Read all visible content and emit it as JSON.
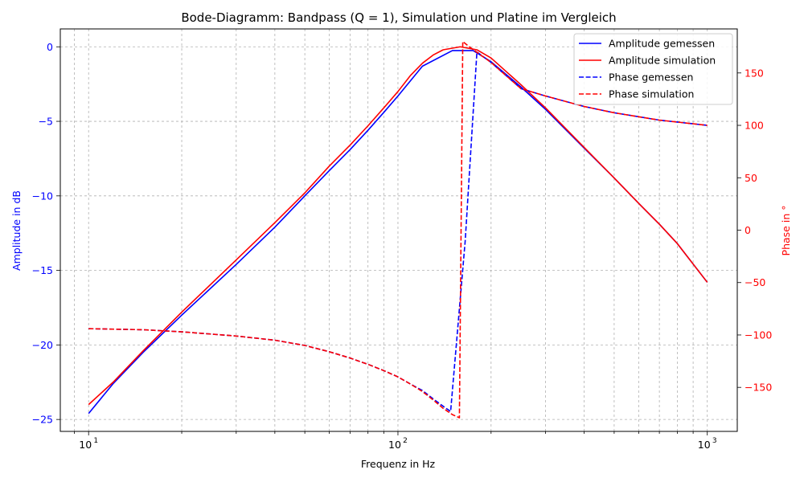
{
  "chart_data": {
    "type": "line",
    "title": "Bode-Diagramm: Bandpass (Q = 1), Simulation und Platine im Vergleich",
    "xlabel": "Frequenz in Hz",
    "ylabel_left": "Amplitude in dB",
    "ylabel_right": "Phase in °",
    "x_scale": "log",
    "xlim": [
      8.1,
      1250
    ],
    "ylim_left": [
      -25.8,
      1.2
    ],
    "ylim_right": [
      -192,
      192
    ],
    "x_ticks": [
      {
        "value": 10,
        "label": "10"
      },
      {
        "value": 100,
        "label": "10"
      },
      {
        "value": 1000,
        "label": "10"
      }
    ],
    "x_tick_exponents": [
      "1",
      "2",
      "3"
    ],
    "y_ticks_left": [
      0,
      -5,
      -10,
      -15,
      -20,
      -25
    ],
    "y_tick_labels_left": [
      "0",
      "−5",
      "−10",
      "−15",
      "−20",
      "−25"
    ],
    "y_ticks_right": [
      150,
      100,
      50,
      0,
      -50,
      -100,
      -150
    ],
    "y_tick_labels_right": [
      "150",
      "100",
      "50",
      "0",
      "−50",
      "−100",
      "−150"
    ],
    "grid": true,
    "legend_position": "top-right",
    "colors": {
      "left_axis": "#0000ff",
      "right_axis": "#ff0000"
    },
    "series": [
      {
        "name": "Amplitude gemessen",
        "axis": "left",
        "color": "#0000ff",
        "style": "solid",
        "points": [
          [
            10,
            -24.6
          ],
          [
            12,
            -22.6
          ],
          [
            15,
            -20.5
          ],
          [
            20,
            -18.0
          ],
          [
            30,
            -14.6
          ],
          [
            40,
            -12.1
          ],
          [
            50,
            -10.0
          ],
          [
            60,
            -8.3
          ],
          [
            70,
            -6.9
          ],
          [
            80,
            -5.6
          ],
          [
            90,
            -4.4
          ],
          [
            100,
            -3.3
          ],
          [
            120,
            -1.3
          ],
          [
            150,
            -0.25
          ],
          [
            175,
            -0.25
          ],
          [
            200,
            -1.0
          ],
          [
            250,
            -2.7
          ],
          [
            300,
            -4.2
          ],
          [
            400,
            -6.8
          ],
          [
            500,
            -8.8
          ],
          [
            600,
            -10.5
          ],
          [
            700,
            -11.9
          ],
          [
            800,
            -13.2
          ],
          [
            1000,
            -15.8
          ]
        ]
      },
      {
        "name": "Amplitude simulation",
        "axis": "left",
        "color": "#ff0000",
        "style": "solid",
        "points": [
          [
            10,
            -24.0
          ],
          [
            12,
            -22.5
          ],
          [
            15,
            -20.4
          ],
          [
            20,
            -17.8
          ],
          [
            30,
            -14.3
          ],
          [
            40,
            -11.8
          ],
          [
            50,
            -9.8
          ],
          [
            60,
            -8.0
          ],
          [
            70,
            -6.6
          ],
          [
            80,
            -5.3
          ],
          [
            90,
            -4.1
          ],
          [
            100,
            -3.0
          ],
          [
            110,
            -1.9
          ],
          [
            120,
            -1.1
          ],
          [
            130,
            -0.55
          ],
          [
            140,
            -0.2
          ],
          [
            159,
            0.0
          ],
          [
            180,
            -0.2
          ],
          [
            200,
            -0.75
          ],
          [
            250,
            -2.55
          ],
          [
            300,
            -4.1
          ],
          [
            400,
            -6.75
          ],
          [
            500,
            -8.8
          ],
          [
            600,
            -10.5
          ],
          [
            700,
            -11.9
          ],
          [
            800,
            -13.2
          ],
          [
            1000,
            -15.8
          ]
        ]
      },
      {
        "name": "Phase gemessen",
        "axis": "right",
        "color": "#0000ff",
        "style": "dashed",
        "points": [
          [
            10,
            -94
          ],
          [
            15,
            -95
          ],
          [
            20,
            -97
          ],
          [
            30,
            -101
          ],
          [
            40,
            -105
          ],
          [
            50,
            -110
          ],
          [
            60,
            -116
          ],
          [
            70,
            -122
          ],
          [
            80,
            -128
          ],
          [
            90,
            -134
          ],
          [
            100,
            -140
          ],
          [
            110,
            -147
          ],
          [
            120,
            -153
          ],
          [
            130,
            -161
          ],
          [
            140,
            -168
          ],
          [
            148,
            -173
          ],
          [
            165,
            -10
          ],
          [
            180,
            170
          ],
          [
            200,
            160
          ],
          [
            250,
            135
          ],
          [
            300,
            128
          ],
          [
            400,
            118
          ],
          [
            500,
            112
          ],
          [
            700,
            105
          ],
          [
            1000,
            100
          ]
        ]
      },
      {
        "name": "Phase simulation",
        "axis": "right",
        "color": "#ff0000",
        "style": "dashed",
        "points": [
          [
            10,
            -94
          ],
          [
            15,
            -95
          ],
          [
            20,
            -97
          ],
          [
            30,
            -101
          ],
          [
            40,
            -105
          ],
          [
            50,
            -110
          ],
          [
            60,
            -116
          ],
          [
            70,
            -122
          ],
          [
            80,
            -128
          ],
          [
            90,
            -134
          ],
          [
            100,
            -140
          ],
          [
            110,
            -147
          ],
          [
            120,
            -154
          ],
          [
            130,
            -162
          ],
          [
            140,
            -170
          ],
          [
            150,
            -176
          ],
          [
            158,
            -179
          ],
          [
            162,
            180
          ],
          [
            170,
            175
          ],
          [
            200,
            160
          ],
          [
            250,
            135
          ],
          [
            300,
            128
          ],
          [
            400,
            118
          ],
          [
            500,
            112
          ],
          [
            700,
            105
          ],
          [
            1000,
            100
          ]
        ]
      }
    ]
  }
}
